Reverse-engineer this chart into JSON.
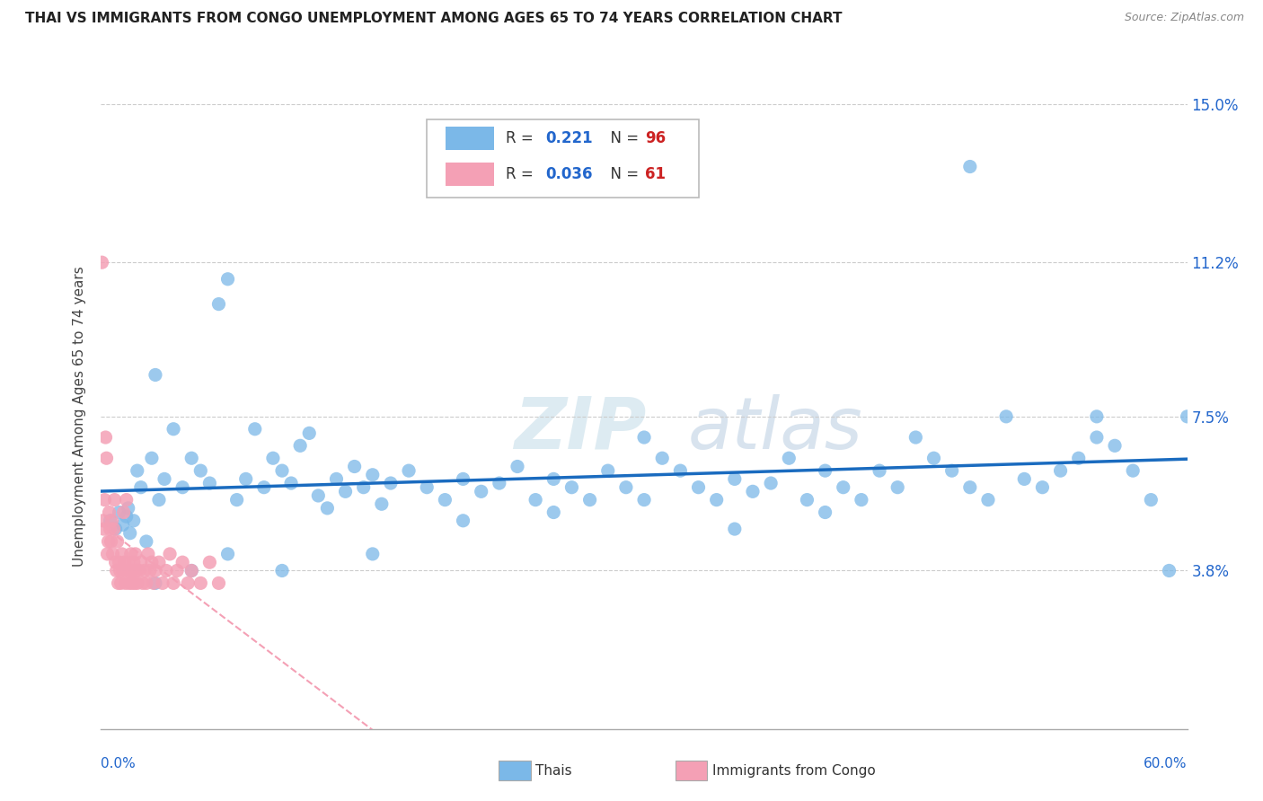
{
  "title": "THAI VS IMMIGRANTS FROM CONGO UNEMPLOYMENT AMONG AGES 65 TO 74 YEARS CORRELATION CHART",
  "source": "Source: ZipAtlas.com",
  "ylabel": "Unemployment Among Ages 65 to 74 years",
  "ytick_values": [
    3.8,
    7.5,
    11.2,
    15.0
  ],
  "xmin": 0.0,
  "xmax": 60.0,
  "ymin": 0.0,
  "ymax": 15.0,
  "thai_R": 0.221,
  "thai_N": 96,
  "congo_R": 0.036,
  "congo_N": 61,
  "thai_color": "#7bb8e8",
  "congo_color": "#f4a0b5",
  "thai_line_color": "#1a6bbf",
  "congo_line_color": "#f4a0b5",
  "watermark_zip": "ZIP",
  "watermark_atlas": "atlas",
  "legend_label_thai": "Thais",
  "legend_label_congo": "Immigrants from Congo",
  "thai_x": [
    0.5,
    0.8,
    1.0,
    1.2,
    1.4,
    1.5,
    1.6,
    1.8,
    2.0,
    2.2,
    2.5,
    2.8,
    3.0,
    3.2,
    3.5,
    4.0,
    4.5,
    5.0,
    5.5,
    6.0,
    6.5,
    7.0,
    7.5,
    8.0,
    8.5,
    9.0,
    9.5,
    10.0,
    10.5,
    11.0,
    11.5,
    12.0,
    12.5,
    13.0,
    13.5,
    14.0,
    14.5,
    15.0,
    15.5,
    16.0,
    17.0,
    18.0,
    19.0,
    20.0,
    21.0,
    22.0,
    23.0,
    24.0,
    25.0,
    26.0,
    27.0,
    28.0,
    29.0,
    30.0,
    31.0,
    32.0,
    33.0,
    34.0,
    35.0,
    36.0,
    37.0,
    38.0,
    39.0,
    40.0,
    41.0,
    42.0,
    43.0,
    44.0,
    45.0,
    46.0,
    47.0,
    48.0,
    49.0,
    50.0,
    51.0,
    52.0,
    53.0,
    54.0,
    55.0,
    56.0,
    57.0,
    58.0,
    59.0,
    60.0,
    3.0,
    5.0,
    7.0,
    10.0,
    15.0,
    20.0,
    25.0,
    30.0,
    35.0,
    40.0,
    55.0,
    48.0
  ],
  "thai_y": [
    5.0,
    4.8,
    5.2,
    4.9,
    5.1,
    5.3,
    4.7,
    5.0,
    6.2,
    5.8,
    4.5,
    6.5,
    8.5,
    5.5,
    6.0,
    7.2,
    5.8,
    6.5,
    6.2,
    5.9,
    10.2,
    10.8,
    5.5,
    6.0,
    7.2,
    5.8,
    6.5,
    6.2,
    5.9,
    6.8,
    7.1,
    5.6,
    5.3,
    6.0,
    5.7,
    6.3,
    5.8,
    6.1,
    5.4,
    5.9,
    6.2,
    5.8,
    5.5,
    6.0,
    5.7,
    5.9,
    6.3,
    5.5,
    6.0,
    5.8,
    5.5,
    6.2,
    5.8,
    7.0,
    6.5,
    6.2,
    5.8,
    5.5,
    6.0,
    5.7,
    5.9,
    6.5,
    5.5,
    6.2,
    5.8,
    5.5,
    6.2,
    5.8,
    7.0,
    6.5,
    6.2,
    5.8,
    5.5,
    7.5,
    6.0,
    5.8,
    6.2,
    6.5,
    7.0,
    6.8,
    6.2,
    5.5,
    3.8,
    7.5,
    3.5,
    3.8,
    4.2,
    3.8,
    4.2,
    5.0,
    5.2,
    5.5,
    4.8,
    5.2,
    7.5,
    13.5
  ],
  "congo_x": [
    0.1,
    0.15,
    0.2,
    0.25,
    0.3,
    0.35,
    0.4,
    0.45,
    0.5,
    0.55,
    0.6,
    0.65,
    0.7,
    0.75,
    0.8,
    0.85,
    0.9,
    0.95,
    1.0,
    1.05,
    1.1,
    1.15,
    1.2,
    1.25,
    1.3,
    1.35,
    1.4,
    1.45,
    1.5,
    1.55,
    1.6,
    1.65,
    1.7,
    1.75,
    1.8,
    1.85,
    1.9,
    1.95,
    2.0,
    2.1,
    2.2,
    2.3,
    2.4,
    2.5,
    2.6,
    2.7,
    2.8,
    2.9,
    3.0,
    3.2,
    3.4,
    3.6,
    3.8,
    4.0,
    4.2,
    4.5,
    4.8,
    5.0,
    5.5,
    6.0,
    6.5
  ],
  "congo_y": [
    5.0,
    4.8,
    5.5,
    7.0,
    6.5,
    4.2,
    4.5,
    5.2,
    4.8,
    4.5,
    5.0,
    4.2,
    4.8,
    5.5,
    4.0,
    3.8,
    4.5,
    3.5,
    4.0,
    3.8,
    3.5,
    4.2,
    3.8,
    5.2,
    4.0,
    3.5,
    5.5,
    3.8,
    4.0,
    3.5,
    3.8,
    4.2,
    3.5,
    3.8,
    4.0,
    3.5,
    4.2,
    3.8,
    3.5,
    3.8,
    4.0,
    3.5,
    3.8,
    3.5,
    4.2,
    3.8,
    4.0,
    3.5,
    3.8,
    4.0,
    3.5,
    3.8,
    4.2,
    3.5,
    3.8,
    4.0,
    3.5,
    3.8,
    3.5,
    4.0,
    3.5
  ],
  "congo_high_x": [
    0.05
  ],
  "congo_high_y": [
    11.2
  ]
}
